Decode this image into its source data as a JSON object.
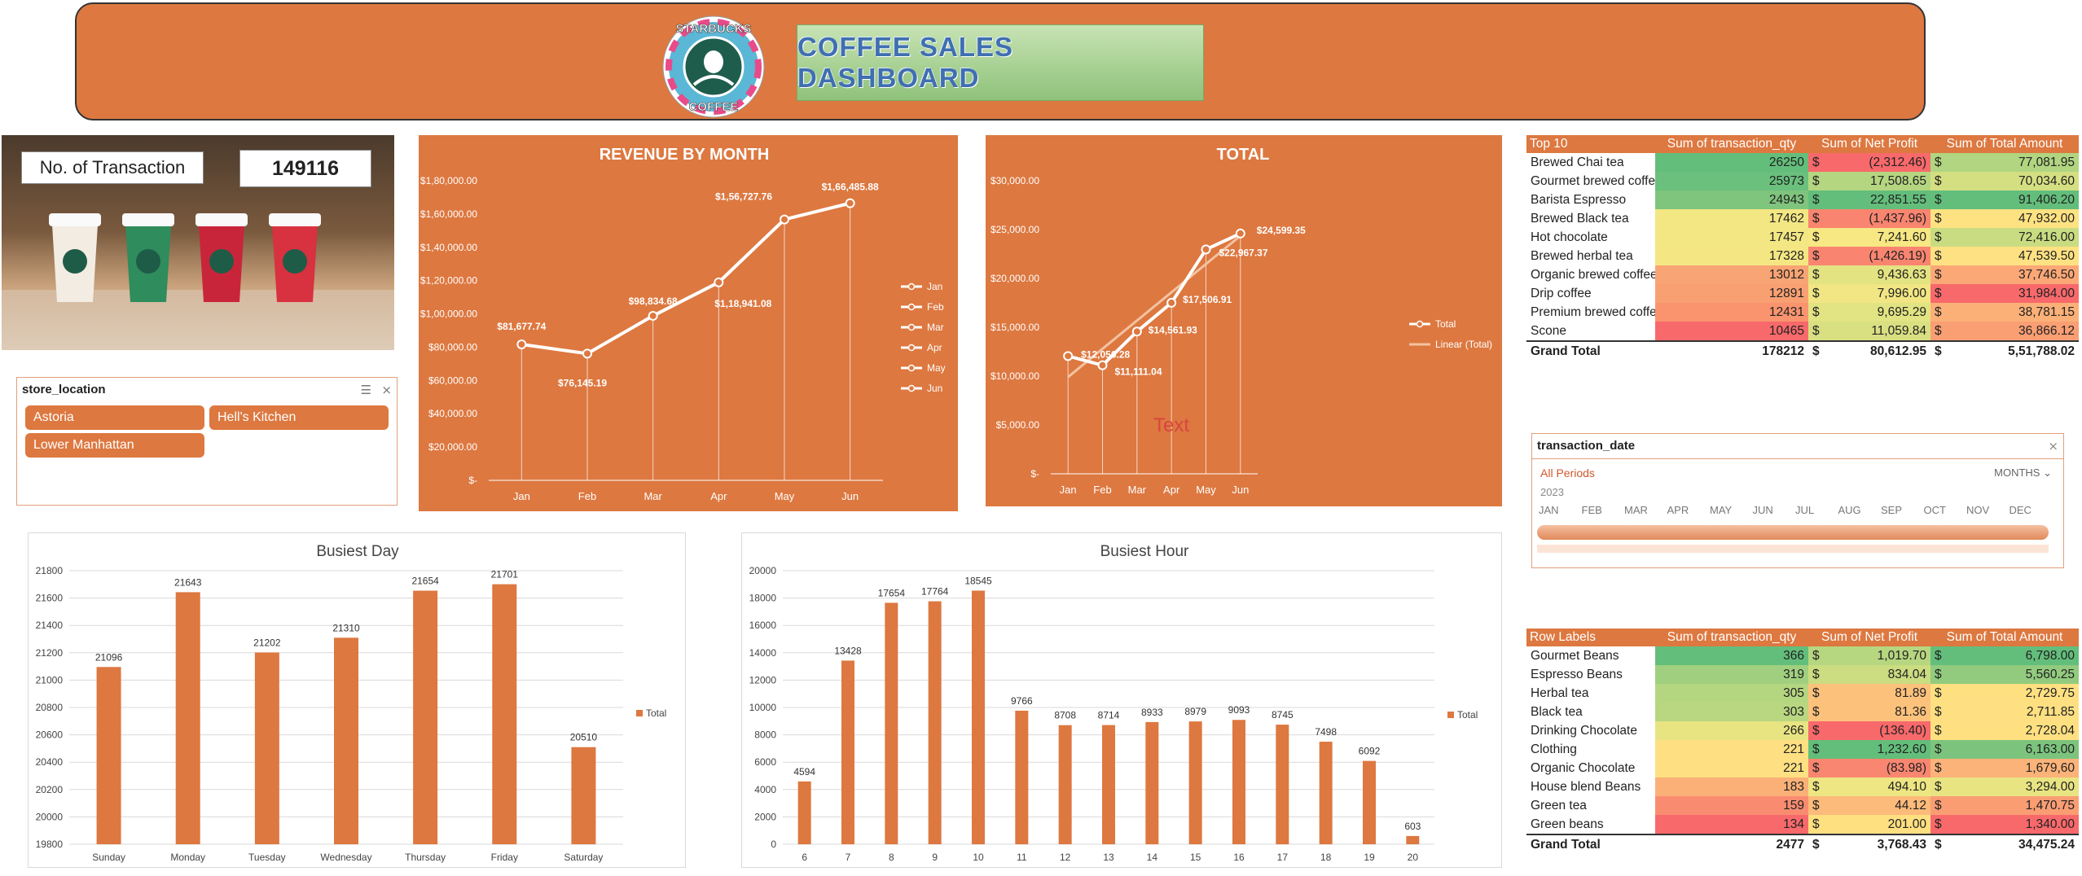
{
  "header": {
    "title": "COFFEE SALES DASHBOARD",
    "logo_text_top": "STARBUCKS",
    "logo_text_bottom": "COFFEE"
  },
  "kpi": {
    "label": "No. of Transaction",
    "value": "149116"
  },
  "store_slicer": {
    "title": "store_location",
    "items": [
      "Astoria",
      "Hell's Kitchen",
      "Lower Manhattan"
    ]
  },
  "date_slicer": {
    "title": "transaction_date",
    "period_label": "All Periods",
    "level_label": "MONTHS",
    "year": "2023",
    "months": [
      "JAN",
      "FEB",
      "MAR",
      "APR",
      "MAY",
      "JUN",
      "JUL",
      "AUG",
      "SEP",
      "OCT",
      "NOV",
      "DEC"
    ]
  },
  "colors": {
    "accent": "#dd7840",
    "white": "#ffffff"
  },
  "revenue_chart": {
    "title": "REVENUE BY MONTH",
    "chart_data": {
      "type": "line",
      "categories": [
        "Jan",
        "Feb",
        "Mar",
        "Apr",
        "May",
        "Jun"
      ],
      "values": [
        81677.74,
        76145.19,
        98834.68,
        118941.08,
        156727.76,
        166485.88
      ],
      "data_labels": [
        "$81,677.74",
        "$76,145.19",
        "$98,834.68",
        "$1,18,941.08",
        "$1,56,727.76",
        "$1,66,485.88"
      ],
      "y_ticks": [
        "$-",
        "$20,000.00",
        "$40,000.00",
        "$60,000.00",
        "$80,000.00",
        "$1,00,000.00",
        "$1,20,000.00",
        "$1,40,000.00",
        "$1,60,000.00",
        "$1,80,000.00"
      ],
      "ylim": [
        0,
        180000
      ],
      "legend": [
        "Jan",
        "Feb",
        "Mar",
        "Apr",
        "May",
        "Jun"
      ],
      "legend_position": "right"
    }
  },
  "total_chart": {
    "title": "TOTAL",
    "annotation": "Text",
    "chart_data": {
      "type": "line",
      "categories": [
        "Jan",
        "Feb",
        "Mar",
        "Apr",
        "May",
        "Jun"
      ],
      "values": [
        12056.28,
        11111.04,
        14561.93,
        17506.91,
        22967.37,
        24599.35
      ],
      "data_labels": [
        "$12,056.28",
        "$11,111.04",
        "$14,561.93",
        "$17,506.91",
        "$22,967.37",
        "$24,599.35"
      ],
      "y_ticks": [
        "$-",
        "$5,000.00",
        "$10,000.00",
        "$15,000.00",
        "$20,000.00",
        "$25,000.00",
        "$30,000.00"
      ],
      "ylim": [
        0,
        30000
      ],
      "legend": [
        "Total",
        "Linear (Total)"
      ],
      "legend_position": "right"
    }
  },
  "top10": {
    "headers": [
      "Top 10",
      "Sum of transaction_qty",
      "Sum of Net Profit",
      "Sum of Total Amount"
    ],
    "rows": [
      {
        "name": "Brewed Chai tea",
        "qty": "26250",
        "profit": "(2,312.46)",
        "amount": "77,081.95",
        "qc": "#63be7b",
        "pc": "#f8696b",
        "ac": "#b1d580"
      },
      {
        "name": "Gourmet brewed coffee",
        "qty": "25973",
        "profit": "17,508.65",
        "amount": "70,034.60",
        "qc": "#6ac07c",
        "pc": "#b4d680",
        "ac": "#d4df82"
      },
      {
        "name": "Barista Espresso",
        "qty": "24943",
        "profit": "22,851.55",
        "amount": "91,406.20",
        "qc": "#7fc57d",
        "pc": "#63be7b",
        "ac": "#63be7b"
      },
      {
        "name": "Brewed Black tea",
        "qty": "17462",
        "profit": "(1,437.96)",
        "amount": "47,932.00",
        "qc": "#f2e783",
        "pc": "#f98570",
        "ac": "#fee282"
      },
      {
        "name": "Hot chocolate",
        "qty": "17457",
        "profit": "7,241.60",
        "amount": "72,416.00",
        "qc": "#f2e783",
        "pc": "#f7e883",
        "ac": "#cadc81"
      },
      {
        "name": "Brewed herbal tea",
        "qty": "17328",
        "profit": "(1,426.19)",
        "amount": "47,539.50",
        "qc": "#f4e783",
        "pc": "#f98570",
        "ac": "#fee182"
      },
      {
        "name": "Organic brewed coffee",
        "qty": "13012",
        "profit": "9,436.63",
        "amount": "37,746.50",
        "qc": "#f9a474",
        "pc": "#e4e382",
        "ac": "#fba876"
      },
      {
        "name": "Drip coffee",
        "qty": "12891",
        "profit": "7,996.00",
        "amount": "31,984.00",
        "qc": "#f9a073",
        "pc": "#f1e683",
        "ac": "#f8696b"
      },
      {
        "name": "Premium brewed coffee",
        "qty": "12431",
        "profit": "9,695.29",
        "amount": "38,781.15",
        "qc": "#f9946f",
        "pc": "#e2e382",
        "ac": "#fbb078"
      },
      {
        "name": "Scone",
        "qty": "10465",
        "profit": "11,059.84",
        "amount": "36,866.12",
        "qc": "#f8696b",
        "pc": "#d9e082",
        "ac": "#fa9e73"
      }
    ],
    "total": {
      "name": "Grand Total",
      "qty": "178212",
      "profit": "80,612.95",
      "amount": "5,51,788.02"
    }
  },
  "rowlabels": {
    "headers": [
      "Row Labels",
      "Sum of transaction_qty",
      "Sum of Net Profit",
      "Sum of Total Amount"
    ],
    "rows": [
      {
        "name": "Gourmet Beans",
        "qty": "366",
        "profit": "1,019.70",
        "amount": "6,798.00",
        "qc": "#63be7b",
        "pc": "#b7d680",
        "ac": "#63be7b"
      },
      {
        "name": "Espresso Beans",
        "qty": "319",
        "profit": "834.04",
        "amount": "5,560.25",
        "qc": "#a0d07f",
        "pc": "#cbdc81",
        "ac": "#92cb7e"
      },
      {
        "name": "Herbal tea",
        "qty": "305",
        "profit": "81.89",
        "amount": "2,729.75",
        "qc": "#b5d680",
        "pc": "#fcc27c",
        "ac": "#fee081"
      },
      {
        "name": "Black tea",
        "qty": "303",
        "profit": "81.36",
        "amount": "2,711.85",
        "qc": "#b8d780",
        "pc": "#fcc27c",
        "ac": "#fedf81"
      },
      {
        "name": "Drinking Chocolate",
        "qty": "266",
        "profit": "(136.40)",
        "amount": "2,728.04",
        "qc": "#e8e482",
        "pc": "#f8696b",
        "ac": "#fee081"
      },
      {
        "name": "Clothing",
        "qty": "221",
        "profit": "1,232.60",
        "amount": "6,163.00",
        "qc": "#fee082",
        "pc": "#63be7b",
        "ac": "#7cc47d"
      },
      {
        "name": "Organic Chocolate",
        "qty": "221",
        "profit": "(83.98)",
        "amount": "1,679,60",
        "qc": "#fee082",
        "pc": "#f98670",
        "ac": "#fbb379"
      },
      {
        "name": "House blend Beans",
        "qty": "183",
        "profit": "494.10",
        "amount": "3,294.00",
        "qc": "#fbb078",
        "pc": "#eee683",
        "ac": "#e8e482"
      },
      {
        "name": "Green tea",
        "qty": "159",
        "profit": "44.12",
        "amount": "1,470.75",
        "qc": "#f98c70",
        "pc": "#fcbb7a",
        "ac": "#fa9d73"
      },
      {
        "name": "Green beans",
        "qty": "134",
        "profit": "201.00",
        "amount": "1,340.00",
        "qc": "#f8696b",
        "pc": "#fee081",
        "ac": "#f8696b"
      }
    ],
    "total": {
      "name": "Grand Total",
      "qty": "2477",
      "profit": "3,768.43",
      "amount": "34,475.24"
    }
  },
  "busiest_day": {
    "title": "Busiest Day",
    "legend": "Total",
    "chart_data": {
      "type": "bar",
      "categories": [
        "Sunday",
        "Monday",
        "Tuesday",
        "Wednesday",
        "Thursday",
        "Friday",
        "Saturday"
      ],
      "values": [
        21096,
        21643,
        21202,
        21310,
        21654,
        21701,
        20510
      ],
      "ylim": [
        19800,
        21800
      ],
      "y_ticks": [
        "19800",
        "20000",
        "20200",
        "20400",
        "20600",
        "20800",
        "21000",
        "21200",
        "21400",
        "21600",
        "21800"
      ]
    }
  },
  "busiest_hour": {
    "title": "Busiest Hour",
    "legend": "Total",
    "chart_data": {
      "type": "bar",
      "categories": [
        "6",
        "7",
        "8",
        "9",
        "10",
        "11",
        "12",
        "13",
        "14",
        "15",
        "16",
        "17",
        "18",
        "19",
        "20"
      ],
      "values": [
        4594,
        13428,
        17654,
        17764,
        18545,
        9766,
        8708,
        8714,
        8933,
        8979,
        9093,
        8745,
        7498,
        6092,
        603
      ],
      "ylim": [
        0,
        20000
      ],
      "y_ticks": [
        "0",
        "2000",
        "4000",
        "6000",
        "8000",
        "10000",
        "12000",
        "14000",
        "16000",
        "18000",
        "20000"
      ]
    }
  },
  "currency_symbol": "$"
}
